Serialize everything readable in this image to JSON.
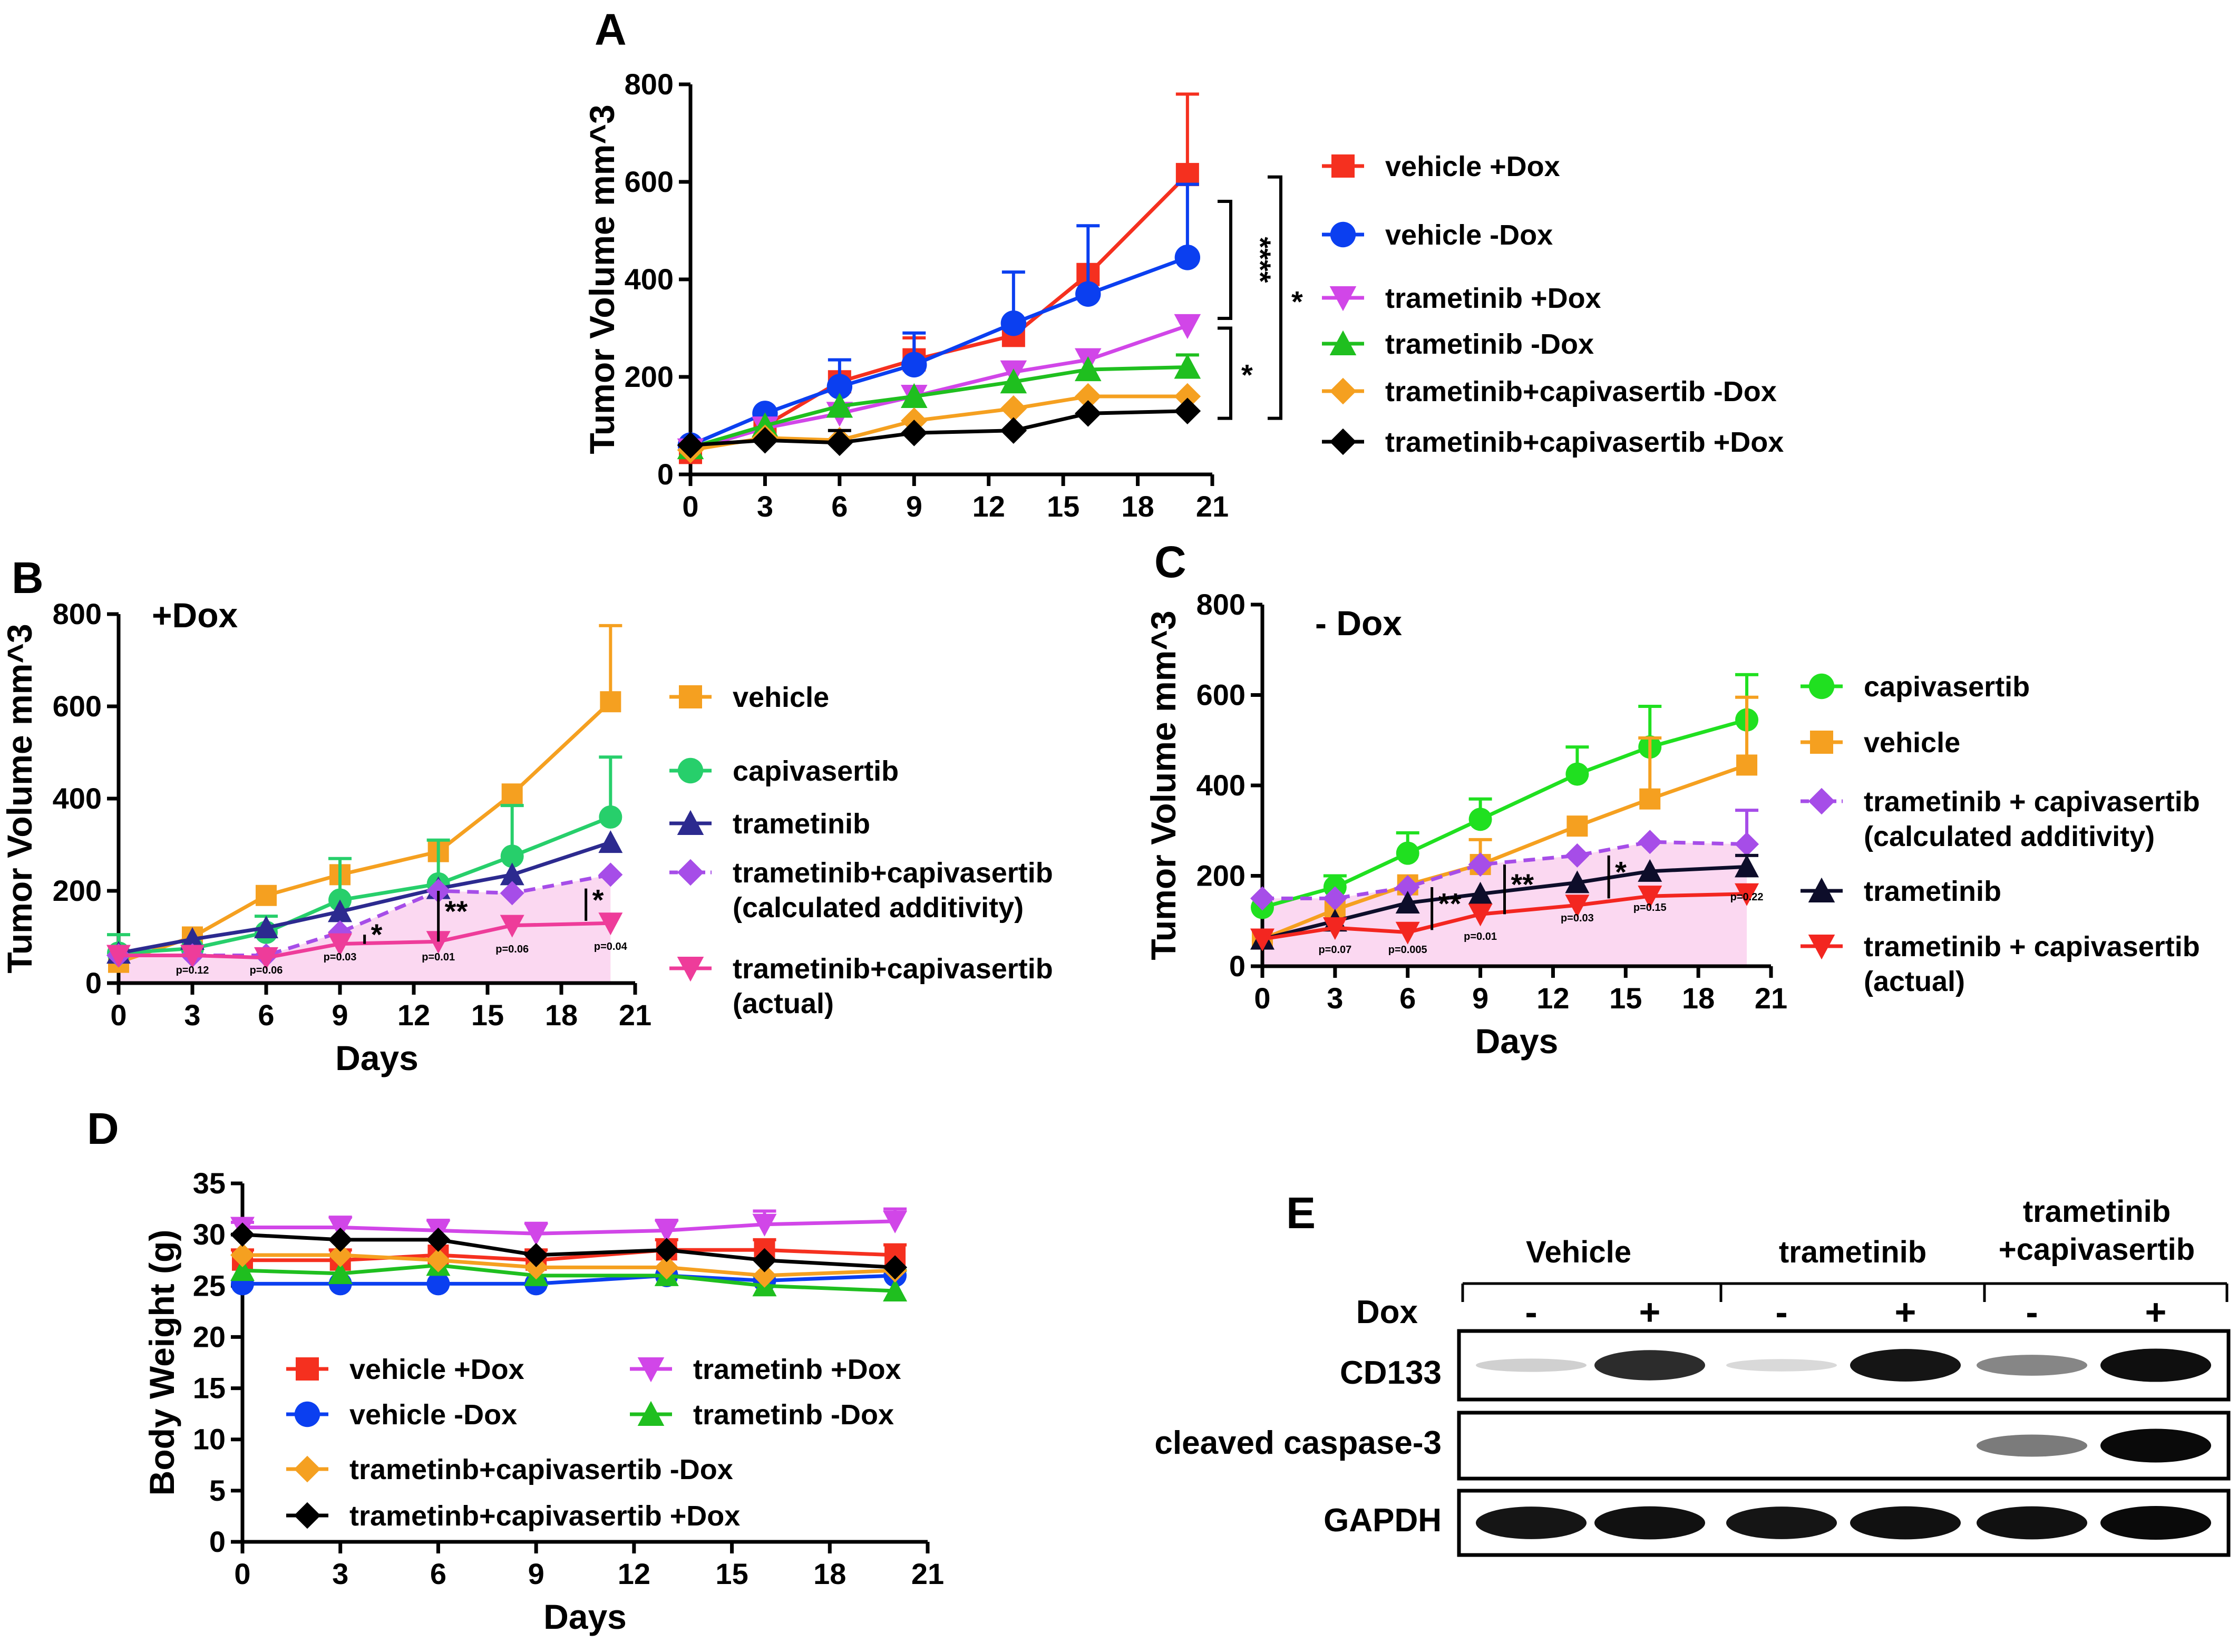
{
  "colors": {
    "red": "#f5301f",
    "blue": "#0b3ff0",
    "magenta": "#d146e8",
    "green": "#1fbf1f",
    "orange": "#f5a020",
    "black": "#000000",
    "b_green": "#27cf6b",
    "navy": "#2c2a8f",
    "purple": "#a64de8",
    "pink": "#ee3c9a",
    "c_green": "#20e020",
    "c_red": "#f32620",
    "c_black": "#0d0d2a",
    "shade": "#fbd4ef"
  },
  "chart_data": [
    {
      "id": "A",
      "type": "line",
      "panel_label": "A",
      "ylabel": "Tumor Volume mm^3",
      "xlabel": "",
      "xlim": [
        0,
        21
      ],
      "ylim": [
        0,
        800
      ],
      "xticks": [
        0,
        3,
        6,
        9,
        12,
        15,
        18,
        21
      ],
      "yticks": [
        0,
        200,
        400,
        600,
        800
      ],
      "series": [
        {
          "name": "vehicle +Dox",
          "color": "red",
          "marker": "square",
          "x": [
            0,
            3,
            6,
            9,
            13,
            16,
            20
          ],
          "y": [
            45,
            100,
            190,
            235,
            285,
            410,
            615
          ],
          "err": [
            0,
            0,
            0,
            45,
            0,
            0,
            165
          ]
        },
        {
          "name": "vehicle -Dox",
          "color": "blue",
          "marker": "circle",
          "x": [
            0,
            3,
            6,
            9,
            13,
            16,
            20
          ],
          "y": [
            60,
            125,
            180,
            225,
            310,
            370,
            445
          ],
          "err": [
            0,
            0,
            55,
            65,
            105,
            140,
            150
          ]
        },
        {
          "name": "trametinib +Dox",
          "color": "magenta",
          "marker": "tri-down",
          "x": [
            0,
            3,
            6,
            9,
            13,
            16,
            20
          ],
          "y": [
            50,
            95,
            125,
            160,
            210,
            235,
            305
          ],
          "err": [
            0,
            0,
            0,
            0,
            0,
            0,
            0
          ]
        },
        {
          "name": "trametinib -Dox",
          "color": "green",
          "marker": "tri-up",
          "x": [
            0,
            3,
            6,
            9,
            13,
            16,
            20
          ],
          "y": [
            55,
            100,
            140,
            160,
            190,
            215,
            220
          ],
          "err": [
            0,
            0,
            0,
            0,
            0,
            0,
            25
          ]
        },
        {
          "name": "trametinib+capivasertib -Dox",
          "color": "orange",
          "marker": "diamond",
          "x": [
            0,
            3,
            6,
            9,
            13,
            16,
            20
          ],
          "y": [
            50,
            75,
            70,
            110,
            135,
            160,
            160
          ],
          "err": [
            0,
            0,
            0,
            0,
            0,
            0,
            0
          ]
        },
        {
          "name": "trametinib+capivasertib +Dox",
          "color": "black",
          "marker": "diamond",
          "x": [
            0,
            3,
            6,
            9,
            13,
            16,
            20
          ],
          "y": [
            60,
            70,
            65,
            85,
            90,
            125,
            130
          ],
          "err": [
            0,
            0,
            25,
            0,
            0,
            0,
            0
          ]
        }
      ],
      "annotations": [
        {
          "text": "****",
          "y_from": 615,
          "y_to": 320
        },
        {
          "text": "*",
          "y_from": 615,
          "y_to": 115
        },
        {
          "text": "*",
          "y_from": 300,
          "y_to": 115
        }
      ]
    },
    {
      "id": "B",
      "type": "line",
      "panel_label": "B",
      "subtitle": "+Dox",
      "ylabel": "Tumor Volume mm^3",
      "xlabel": "Days",
      "xlim": [
        0,
        21
      ],
      "ylim": [
        0,
        800
      ],
      "xticks": [
        0,
        3,
        6,
        9,
        12,
        15,
        18,
        21
      ],
      "yticks": [
        0,
        200,
        400,
        600,
        800
      ],
      "shaded_series": "trametinib+capivasertib (calculated additivity)",
      "series": [
        {
          "name": "vehicle",
          "color": "orange",
          "marker": "square",
          "x": [
            0,
            3,
            6,
            9,
            13,
            16,
            20
          ],
          "y": [
            45,
            100,
            190,
            235,
            285,
            410,
            610
          ],
          "err": [
            0,
            0,
            0,
            0,
            0,
            0,
            165
          ]
        },
        {
          "name": "capivasertib",
          "color": "b_green",
          "marker": "circle",
          "x": [
            0,
            3,
            6,
            9,
            13,
            16,
            20
          ],
          "y": [
            65,
            75,
            110,
            180,
            215,
            275,
            360
          ],
          "err": [
            40,
            0,
            35,
            90,
            95,
            110,
            130
          ]
        },
        {
          "name": "trametinib",
          "color": "navy",
          "marker": "tri-up",
          "x": [
            0,
            3,
            6,
            9,
            13,
            16,
            20
          ],
          "y": [
            65,
            95,
            120,
            155,
            205,
            235,
            305
          ],
          "err": [
            0,
            0,
            0,
            0,
            0,
            0,
            0
          ]
        },
        {
          "name": "trametinib+capivasertib\n(calculated additivity)",
          "color": "purple",
          "marker": "diamond",
          "dashed": true,
          "x": [
            0,
            3,
            6,
            9,
            13,
            16,
            20
          ],
          "y": [
            60,
            60,
            60,
            110,
            200,
            195,
            235
          ],
          "err": [
            0,
            0,
            0,
            0,
            0,
            0,
            0
          ]
        },
        {
          "name": "trametinib+capivasertib\n(actual)",
          "color": "pink",
          "marker": "tri-down",
          "x": [
            0,
            3,
            6,
            9,
            13,
            16,
            20
          ],
          "y": [
            60,
            60,
            55,
            85,
            90,
            125,
            130
          ],
          "err": [
            0,
            0,
            0,
            0,
            0,
            0,
            0
          ]
        }
      ],
      "pvalues": [
        {
          "x": 3,
          "text": "p=0.12"
        },
        {
          "x": 6,
          "text": "p=0.06"
        },
        {
          "x": 9,
          "text": "p=0.03"
        },
        {
          "x": 13,
          "text": "p=0.01"
        },
        {
          "x": 16,
          "text": "p=0.06"
        },
        {
          "x": 20,
          "text": "p=0.04"
        }
      ],
      "sig_marks": [
        {
          "x": 10,
          "y_from": 105,
          "y_to": 85,
          "text": "*"
        },
        {
          "x": 13,
          "y_from": 200,
          "y_to": 90,
          "text": "**"
        },
        {
          "x": 19,
          "y_from": 205,
          "y_to": 135,
          "text": "*"
        }
      ]
    },
    {
      "id": "C",
      "type": "line",
      "panel_label": "C",
      "subtitle": "- Dox",
      "ylabel": "Tumor Volume mm^3",
      "xlabel": "Days",
      "xlim": [
        0,
        21
      ],
      "ylim": [
        0,
        800
      ],
      "xticks": [
        0,
        3,
        6,
        9,
        12,
        15,
        18,
        21
      ],
      "yticks": [
        0,
        200,
        400,
        600,
        800
      ],
      "shaded_series": "trametinib + capivasertib (calculated additivity)",
      "series": [
        {
          "name": "capivasertib",
          "color": "c_green",
          "marker": "circle",
          "x": [
            0,
            3,
            6,
            9,
            13,
            16,
            20
          ],
          "y": [
            130,
            175,
            250,
            325,
            425,
            485,
            545
          ],
          "err": [
            0,
            25,
            45,
            45,
            60,
            90,
            100
          ]
        },
        {
          "name": "vehicle",
          "color": "orange",
          "marker": "square",
          "x": [
            0,
            3,
            6,
            9,
            13,
            16,
            20
          ],
          "y": [
            60,
            125,
            180,
            225,
            310,
            370,
            445
          ],
          "err": [
            0,
            0,
            0,
            55,
            0,
            135,
            150
          ]
        },
        {
          "name": "trametinib + capivasertib\n(calculated additivity)",
          "color": "purple",
          "marker": "diamond",
          "dashed": true,
          "x": [
            0,
            3,
            6,
            9,
            13,
            16,
            20
          ],
          "y": [
            150,
            150,
            175,
            225,
            245,
            275,
            270
          ],
          "err": [
            0,
            0,
            0,
            0,
            0,
            0,
            75
          ]
        },
        {
          "name": "trametinib",
          "color": "c_black",
          "marker": "tri-up",
          "x": [
            0,
            3,
            6,
            9,
            13,
            16,
            20
          ],
          "y": [
            60,
            100,
            140,
            160,
            185,
            210,
            220
          ],
          "err": [
            0,
            0,
            0,
            0,
            0,
            0,
            25
          ]
        },
        {
          "name": "trametinib + capivasertib\n(actual)",
          "color": "c_red",
          "marker": "tri-down",
          "x": [
            0,
            3,
            6,
            9,
            13,
            16,
            20
          ],
          "y": [
            60,
            85,
            75,
            115,
            135,
            155,
            160
          ],
          "err": [
            0,
            0,
            0,
            0,
            0,
            0,
            0
          ]
        }
      ],
      "pvalues": [
        {
          "x": 3,
          "text": "p=0.07"
        },
        {
          "x": 6,
          "text": "p=0.005"
        },
        {
          "x": 9,
          "text": "p=0.01"
        },
        {
          "x": 13,
          "text": "p=0.03"
        },
        {
          "x": 16,
          "text": "p=0.15"
        },
        {
          "x": 20,
          "text": "p=0.22"
        }
      ],
      "sig_marks": [
        {
          "x": 7,
          "y_from": 175,
          "y_to": 80,
          "text": "**"
        },
        {
          "x": 10,
          "y_from": 225,
          "y_to": 115,
          "text": "**"
        },
        {
          "x": 14.3,
          "y_from": 245,
          "y_to": 150,
          "text": "*"
        }
      ]
    },
    {
      "id": "D",
      "type": "line",
      "panel_label": "D",
      "ylabel": "Body Weight (g)",
      "xlabel": "Days",
      "xlim": [
        0,
        21
      ],
      "ylim": [
        0,
        35
      ],
      "xticks": [
        0,
        3,
        6,
        9,
        12,
        15,
        18,
        21
      ],
      "yticks": [
        0,
        5,
        10,
        15,
        20,
        25,
        30,
        35
      ],
      "series": [
        {
          "name": "vehicle +Dox",
          "color": "red",
          "marker": "square",
          "x": [
            0,
            3,
            6,
            9,
            13,
            16,
            20
          ],
          "y": [
            27.5,
            27.5,
            28,
            27.5,
            28.5,
            28.5,
            28
          ],
          "err": [
            1,
            1,
            0,
            1,
            1,
            1,
            1
          ]
        },
        {
          "name": "vehicle -Dox",
          "color": "blue",
          "marker": "circle",
          "x": [
            0,
            3,
            6,
            9,
            13,
            16,
            20
          ],
          "y": [
            25.2,
            25.2,
            25.2,
            25.2,
            26,
            25.5,
            26
          ],
          "err": [
            0,
            0,
            0,
            0,
            0,
            0,
            0
          ]
        },
        {
          "name": "trametinb +Dox",
          "color": "magenta",
          "marker": "tri-down",
          "x": [
            0,
            3,
            6,
            9,
            13,
            16,
            20
          ],
          "y": [
            30.7,
            30.7,
            30.4,
            30.1,
            30.4,
            31,
            31.3
          ],
          "err": [
            0.5,
            1,
            1,
            1,
            1,
            1.3,
            1.2
          ]
        },
        {
          "name": "trametinb -Dox",
          "color": "green",
          "marker": "tri-up",
          "x": [
            0,
            3,
            6,
            9,
            13,
            16,
            20
          ],
          "y": [
            26.5,
            26.2,
            27,
            26,
            26,
            25,
            24.5
          ],
          "err": [
            0,
            0,
            0,
            0,
            0,
            1,
            2
          ]
        },
        {
          "name": "trametinb+capivasertib -Dox",
          "color": "orange",
          "marker": "diamond",
          "x": [
            0,
            3,
            6,
            9,
            13,
            16,
            20
          ],
          "y": [
            28,
            28,
            27.5,
            26.8,
            26.8,
            26,
            26.5
          ],
          "err": [
            0,
            0,
            0,
            0,
            0,
            0,
            0
          ]
        },
        {
          "name": "trametinb+capivasertib +Dox",
          "color": "black",
          "marker": "diamond",
          "x": [
            0,
            3,
            6,
            9,
            13,
            16,
            20
          ],
          "y": [
            30,
            29.5,
            29.5,
            28,
            28.5,
            27.5,
            26.8
          ],
          "err": [
            0,
            0,
            0,
            0,
            0,
            0,
            0
          ]
        }
      ]
    }
  ],
  "legends": {
    "A": [
      "vehicle +Dox",
      "vehicle -Dox",
      "trametinib +Dox",
      "trametinib -Dox",
      "trametinib+capivasertib -Dox",
      "trametinib+capivasertib +Dox"
    ],
    "B": [
      "vehicle",
      "capivasertib",
      "trametinib",
      "trametinib+capivasertib",
      "(calculated additivity)",
      "trametinib+capivasertib",
      "(actual)"
    ],
    "C": [
      "capivasertib",
      "vehicle",
      "trametinib + capivasertib",
      "(calculated additivity)",
      "trametinib",
      "trametinib + capivasertib",
      "(actual)"
    ],
    "D": [
      "vehicle +Dox",
      "trametinb +Dox",
      "vehicle -Dox",
      "trametinb -Dox",
      "trametinb+capivasertib -Dox",
      "trametinb+capivasertib +Dox"
    ]
  },
  "western_blot": {
    "panel_label": "E",
    "groups": [
      "Vehicle",
      "trametinib",
      "trametinib",
      "+capivasertib"
    ],
    "dox_label": "Dox",
    "lanes": [
      "-",
      "+",
      "-",
      "+",
      "-",
      "+"
    ],
    "rows": [
      {
        "label": "CD133",
        "intensity": [
          0.12,
          0.85,
          0.08,
          0.95,
          0.45,
          0.98
        ]
      },
      {
        "label": "cleaved caspase-3",
        "intensity": [
          0,
          0,
          0,
          0,
          0.5,
          1.0
        ]
      },
      {
        "label": "GAPDH",
        "intensity": [
          0.95,
          0.97,
          0.95,
          0.97,
          0.97,
          1.0
        ]
      }
    ]
  }
}
